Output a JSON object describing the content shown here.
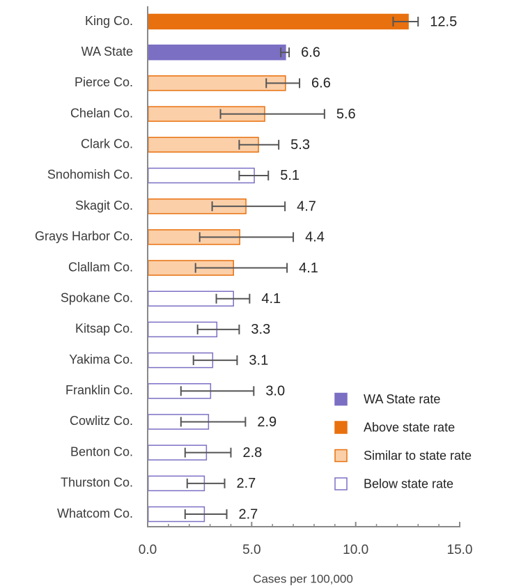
{
  "chart_data": {
    "type": "hbar",
    "x_label": "Cases per 100,000",
    "categories": [
      "King Co.",
      "WA State",
      "Pierce Co.",
      "Chelan Co.",
      "Clark Co.",
      "Snohomish Co.",
      "Skagit Co.",
      "Grays Harbor Co.",
      "Clallam Co.",
      "Spokane Co.",
      "Kitsap Co.",
      "Yakima Co.",
      "Franklin Co.",
      "Cowlitz Co.",
      "Benton Co.",
      "Thurston Co.",
      "Whatcom Co."
    ],
    "series": [
      {
        "name": "WA State rate",
        "color": "#7b6fc4",
        "fill": "#7b6fc4",
        "values": [
          null,
          6.6,
          null,
          null,
          null,
          null,
          null,
          null,
          null,
          null,
          null,
          null,
          null,
          null,
          null,
          null,
          null
        ],
        "value_labels": [
          null,
          "6.6",
          null,
          null,
          null,
          null,
          null,
          null,
          null,
          null,
          null,
          null,
          null,
          null,
          null,
          null,
          null
        ],
        "ci_low": [
          null,
          6.4,
          null,
          null,
          null,
          null,
          null,
          null,
          null,
          null,
          null,
          null,
          null,
          null,
          null,
          null,
          null
        ],
        "ci_high": [
          null,
          6.8,
          null,
          null,
          null,
          null,
          null,
          null,
          null,
          null,
          null,
          null,
          null,
          null,
          null,
          null,
          null
        ]
      },
      {
        "name": "Above state rate",
        "color": "#e8700e",
        "fill": "#e8700e",
        "values": [
          12.5,
          null,
          null,
          null,
          null,
          null,
          null,
          null,
          null,
          null,
          null,
          null,
          null,
          null,
          null,
          null,
          null
        ],
        "value_labels": [
          "12.5",
          null,
          null,
          null,
          null,
          null,
          null,
          null,
          null,
          null,
          null,
          null,
          null,
          null,
          null,
          null,
          null
        ],
        "ci_low": [
          11.8,
          null,
          null,
          null,
          null,
          null,
          null,
          null,
          null,
          null,
          null,
          null,
          null,
          null,
          null,
          null,
          null
        ],
        "ci_high": [
          13.0,
          null,
          null,
          null,
          null,
          null,
          null,
          null,
          null,
          null,
          null,
          null,
          null,
          null,
          null,
          null,
          null
        ]
      },
      {
        "name": "Similar to state rate",
        "color": "#e8700e",
        "fill": "#fbcfa8",
        "values": [
          null,
          null,
          6.6,
          5.6,
          5.3,
          null,
          4.7,
          4.4,
          4.1,
          null,
          null,
          null,
          null,
          null,
          null,
          null,
          null
        ],
        "value_labels": [
          null,
          null,
          "6.6",
          "5.6",
          "5.3",
          null,
          "4.7",
          "4.4",
          "4.1",
          null,
          null,
          null,
          null,
          null,
          null,
          null,
          null
        ],
        "ci_low": [
          null,
          null,
          5.7,
          3.5,
          4.4,
          null,
          3.1,
          2.5,
          2.3,
          null,
          null,
          null,
          null,
          null,
          null,
          null,
          null
        ],
        "ci_high": [
          null,
          null,
          7.3,
          8.5,
          6.3,
          null,
          6.6,
          7.0,
          6.7,
          null,
          null,
          null,
          null,
          null,
          null,
          null,
          null
        ]
      },
      {
        "name": "Below state rate",
        "color": "#7b6fc4",
        "fill": "#ffffff",
        "values": [
          null,
          null,
          null,
          null,
          null,
          5.1,
          null,
          null,
          null,
          4.1,
          3.3,
          3.1,
          3.0,
          2.9,
          2.8,
          2.7,
          2.7
        ],
        "value_labels": [
          null,
          null,
          null,
          null,
          null,
          "5.1",
          null,
          null,
          null,
          "4.1",
          "3.3",
          "3.1",
          "3.0",
          "2.9",
          "2.8",
          "2.7",
          "2.7"
        ],
        "ci_low": [
          null,
          null,
          null,
          null,
          null,
          4.4,
          null,
          null,
          null,
          3.3,
          2.4,
          2.2,
          1.6,
          1.6,
          1.8,
          1.9,
          1.8
        ],
        "ci_high": [
          null,
          null,
          null,
          null,
          null,
          5.8,
          null,
          null,
          null,
          4.9,
          4.4,
          4.3,
          5.1,
          4.7,
          4.0,
          3.7,
          3.8
        ]
      }
    ],
    "xlim": [
      0,
      15
    ],
    "xticks": [
      {
        "value": 0,
        "label": "0.0"
      },
      {
        "value": 5,
        "label": "5.0"
      },
      {
        "value": 10,
        "label": "10.0"
      },
      {
        "value": 15,
        "label": "15.0"
      }
    ],
    "xticks_minor": [
      1,
      2,
      3,
      4,
      6,
      7,
      8,
      9,
      11,
      12,
      13,
      14
    ],
    "legend": "lower right"
  }
}
